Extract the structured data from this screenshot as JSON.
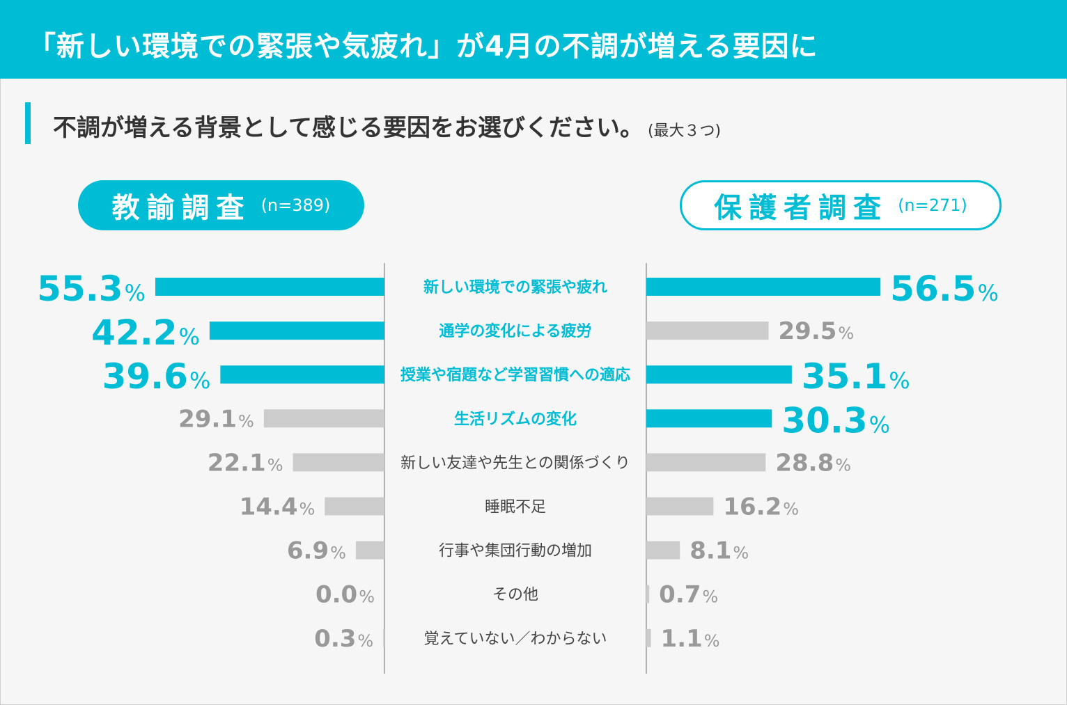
{
  "header": {
    "title": "「新しい環境での緊張や気疲れ」が4月の不調が増える要因に"
  },
  "question": {
    "text": "不調が増える背景として感じる要因をお選びください。",
    "note": "(最大３つ)"
  },
  "surveys": {
    "left": {
      "name": "教諭調査",
      "n": "(n=389)"
    },
    "right": {
      "name": "保護者調査",
      "n": "(n=271)"
    }
  },
  "colors": {
    "accent": "#00bcd4",
    "muted_bar": "#cccccc",
    "muted_text": "#999999",
    "label_text": "#444444"
  },
  "chart_data": {
    "type": "bar",
    "orientation": "horizontal-butterfly",
    "unit": "%",
    "categories": [
      "新しい環境での緊張や疲れ",
      "通学の変化による疲労",
      "授業や宿題など学習習慣への適応",
      "生活リズムの変化",
      "新しい友達や先生との関係づくり",
      "睡眠不足",
      "行事や集団行動の増加",
      "その他",
      "覚えていない／わからない"
    ],
    "highlight_categories": [
      true,
      true,
      true,
      true,
      false,
      false,
      false,
      false,
      false
    ],
    "series": [
      {
        "name": "教諭調査",
        "values": [
          55.3,
          42.2,
          39.6,
          29.1,
          22.1,
          14.4,
          6.9,
          0.0,
          0.3
        ],
        "value_labels": [
          "55.3",
          "42.2",
          "39.6",
          "29.1",
          "22.1",
          "14.4",
          "6.9",
          "0.0",
          "0.3"
        ],
        "highlight": [
          true,
          true,
          true,
          false,
          false,
          false,
          false,
          false,
          false
        ]
      },
      {
        "name": "保護者調査",
        "values": [
          56.5,
          29.5,
          35.1,
          30.3,
          28.8,
          16.2,
          8.1,
          0.7,
          1.1
        ],
        "value_labels": [
          "56.5",
          "29.5",
          "35.1",
          "30.3",
          "28.8",
          "16.2",
          "8.1",
          "0.7",
          "1.1"
        ],
        "highlight": [
          true,
          false,
          true,
          true,
          false,
          false,
          false,
          false,
          false
        ]
      }
    ]
  }
}
